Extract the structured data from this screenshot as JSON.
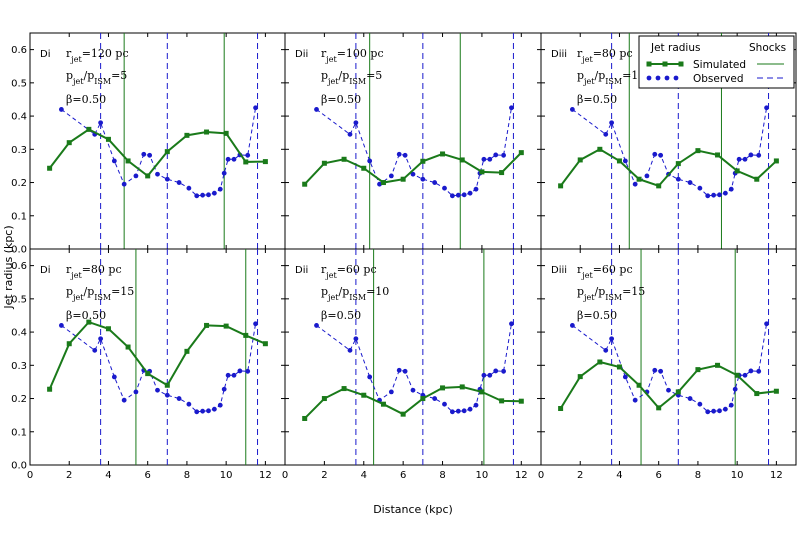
{
  "chart_data": {
    "type": "line",
    "xlabel": "Distance (kpc)",
    "ylabel": "Jet radius (kpc)",
    "xlim": [
      0,
      13
    ],
    "ylim": [
      0,
      0.65
    ],
    "x_ticks": [
      "0",
      "2",
      "4",
      "6",
      "8",
      "10",
      "12"
    ],
    "y_ticks": [
      "0.0",
      "0.1",
      "0.2",
      "0.3",
      "0.4",
      "0.5",
      "0.6"
    ],
    "grid": false,
    "colors": {
      "simulated": "#1a7a1a",
      "observed": "#1a1acc"
    },
    "legend": {
      "position": "top-right",
      "header_left": "Jet radius",
      "header_right": "Shocks",
      "simulated": "Simulated",
      "observed": "Observed"
    },
    "observed": {
      "x": [
        1.6,
        3.3,
        3.6,
        4.3,
        4.8,
        5.4,
        5.8,
        6.1,
        6.5,
        7.0,
        7.6,
        8.1,
        8.5,
        8.8,
        9.1,
        9.4,
        9.7,
        9.9,
        10.1,
        10.4,
        10.7,
        11.1,
        11.5
      ],
      "y": [
        0.42,
        0.345,
        0.38,
        0.265,
        0.195,
        0.22,
        0.285,
        0.282,
        0.225,
        0.21,
        0.2,
        0.183,
        0.16,
        0.162,
        0.163,
        0.168,
        0.18,
        0.228,
        0.27,
        0.27,
        0.283,
        0.282,
        0.425
      ],
      "shocks": [
        3.6,
        7.0,
        11.6
      ]
    },
    "panels": [
      {
        "id": "Di",
        "r_jet": "r_jet=120 pc",
        "p_ratio": "p_jet/p_ISM=5",
        "beta": "β=0.50",
        "sim_x": [
          1.0,
          2.0,
          3.0,
          4.0,
          5.0,
          6.0,
          7.0,
          8.0,
          9.0,
          10.0,
          11.0,
          12.0
        ],
        "sim_y": [
          0.243,
          0.32,
          0.36,
          0.33,
          0.265,
          0.22,
          0.293,
          0.342,
          0.352,
          0.348,
          0.262,
          0.263
        ],
        "sim_shocks": [
          4.8,
          9.9
        ]
      },
      {
        "id": "Dii",
        "r_jet": "r_jet=100 pc",
        "p_ratio": "p_jet/p_ISM=5",
        "beta": "β=0.50",
        "sim_x": [
          1.0,
          2.0,
          3.0,
          4.0,
          5.0,
          6.0,
          7.0,
          8.0,
          9.0,
          10.0,
          11.0,
          12.0
        ],
        "sim_y": [
          0.195,
          0.258,
          0.27,
          0.243,
          0.2,
          0.21,
          0.264,
          0.286,
          0.268,
          0.232,
          0.23,
          0.29
        ],
        "sim_shocks": [
          4.3,
          8.9
        ]
      },
      {
        "id": "Diii",
        "r_jet": "r_jet=80 pc",
        "p_ratio": "p_jet/p_ISM=10",
        "beta": "β=0.50",
        "sim_x": [
          1.0,
          2.0,
          3.0,
          4.0,
          5.0,
          6.0,
          7.0,
          8.0,
          9.0,
          10.0,
          11.0,
          12.0
        ],
        "sim_y": [
          0.19,
          0.268,
          0.3,
          0.265,
          0.21,
          0.19,
          0.257,
          0.296,
          0.283,
          0.235,
          0.21,
          0.265
        ],
        "sim_shocks": [
          4.5,
          9.2
        ]
      },
      {
        "id": "Di",
        "r_jet": "r_jet=80 pc",
        "p_ratio": "p_jet/p_ISM=15",
        "beta": "β=0.50",
        "sim_x": [
          1.0,
          2.0,
          3.0,
          4.0,
          5.0,
          6.0,
          7.0,
          8.0,
          9.0,
          10.0,
          11.0,
          12.0
        ],
        "sim_y": [
          0.228,
          0.365,
          0.43,
          0.41,
          0.355,
          0.275,
          0.24,
          0.342,
          0.42,
          0.418,
          0.39,
          0.365
        ],
        "sim_shocks": [
          5.4,
          11.0
        ]
      },
      {
        "id": "Dii",
        "r_jet": "r_jet=60 pc",
        "p_ratio": "p_jet/p_ISM=10",
        "beta": "β=0.50",
        "sim_x": [
          1.0,
          2.0,
          3.0,
          4.0,
          5.0,
          6.0,
          7.0,
          8.0,
          9.0,
          10.0,
          11.0,
          12.0
        ],
        "sim_y": [
          0.14,
          0.2,
          0.23,
          0.21,
          0.183,
          0.153,
          0.2,
          0.232,
          0.235,
          0.22,
          0.193,
          0.192
        ],
        "sim_shocks": [
          4.5,
          10.1
        ]
      },
      {
        "id": "Diii",
        "r_jet": "r_jet=60 pc",
        "p_ratio": "p_jet/p_ISM=15",
        "beta": "β=0.50",
        "sim_x": [
          1.0,
          2.0,
          3.0,
          4.0,
          5.0,
          6.0,
          7.0,
          8.0,
          9.0,
          10.0,
          11.0,
          12.0
        ],
        "sim_y": [
          0.17,
          0.266,
          0.31,
          0.295,
          0.24,
          0.172,
          0.22,
          0.287,
          0.3,
          0.27,
          0.215,
          0.222
        ],
        "sim_shocks": [
          5.1,
          9.9
        ]
      }
    ]
  }
}
